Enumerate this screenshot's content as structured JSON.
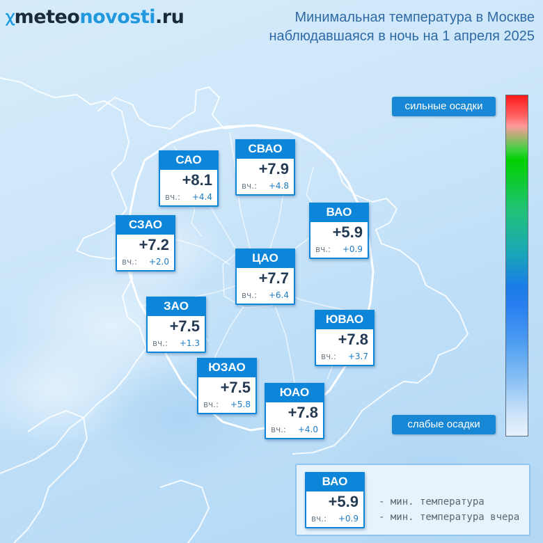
{
  "header": {
    "logo_part1": "meteo",
    "logo_part2": "novosti",
    "logo_tld": ".ru",
    "title_line1": "Минимальная температура в Москве",
    "title_line2": "наблюдавшаяся в ночь на 1 апреля 2025"
  },
  "districts": [
    {
      "name": "САО",
      "temp": "+8.1",
      "yesterday_label": "вч.:",
      "yesterday": "+4.4"
    },
    {
      "name": "СВАО",
      "temp": "+7.9",
      "yesterday_label": "вч.:",
      "yesterday": "+4.8"
    },
    {
      "name": "ВАО",
      "temp": "+5.9",
      "yesterday_label": "вч.:",
      "yesterday": "+0.9"
    },
    {
      "name": "СЗАО",
      "temp": "+7.2",
      "yesterday_label": "вч.:",
      "yesterday": "+2.0"
    },
    {
      "name": "ЦАО",
      "temp": "+7.7",
      "yesterday_label": "вч.:",
      "yesterday": "+6.4"
    },
    {
      "name": "ЗАО",
      "temp": "+7.5",
      "yesterday_label": "вч.:",
      "yesterday": "+1.3"
    },
    {
      "name": "ЮВАО",
      "temp": "+7.8",
      "yesterday_label": "вч.:",
      "yesterday": "+3.7"
    },
    {
      "name": "ЮЗАО",
      "temp": "+7.5",
      "yesterday_label": "вч.:",
      "yesterday": "+5.8"
    },
    {
      "name": "ЮАО",
      "temp": "+7.8",
      "yesterday_label": "вч.:",
      "yesterday": "+4.0"
    }
  ],
  "scale": {
    "top_label": "сильные осадки",
    "bottom_label": "слабые осадки"
  },
  "legend": {
    "sample": {
      "name": "ВАО",
      "temp": "+5.9",
      "yesterday_label": "вч.:",
      "yesterday": "+0.9"
    },
    "line1": "- мин. температура",
    "line2": "- мин. температура вчера"
  },
  "colors": {
    "card_accent": "#0d86da",
    "title_text": "#2f6aa4",
    "logo_blue": "#2198dd"
  }
}
